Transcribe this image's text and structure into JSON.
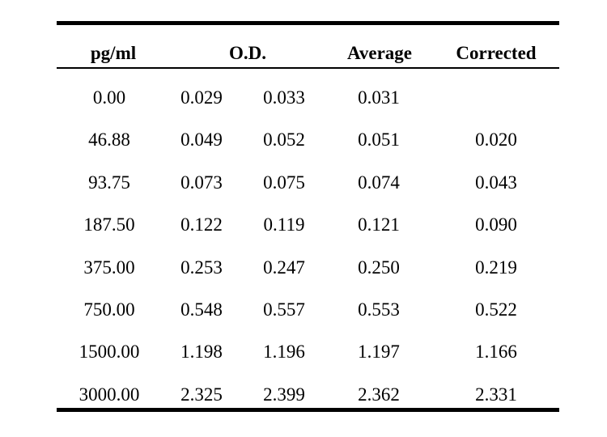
{
  "table": {
    "headers": {
      "conc": "pg/ml",
      "od": "O.D.",
      "average": "Average",
      "corrected": "Corrected"
    },
    "rows": [
      {
        "conc": "0.00",
        "od1": "0.029",
        "od2": "0.033",
        "average": "0.031",
        "corrected": ""
      },
      {
        "conc": "46.88",
        "od1": "0.049",
        "od2": "0.052",
        "average": "0.051",
        "corrected": "0.020"
      },
      {
        "conc": "93.75",
        "od1": "0.073",
        "od2": "0.075",
        "average": "0.074",
        "corrected": "0.043"
      },
      {
        "conc": "187.50",
        "od1": "0.122",
        "od2": "0.119",
        "average": "0.121",
        "corrected": "0.090"
      },
      {
        "conc": "375.00",
        "od1": "0.253",
        "od2": "0.247",
        "average": "0.250",
        "corrected": "0.219"
      },
      {
        "conc": "750.00",
        "od1": "0.548",
        "od2": "0.557",
        "average": "0.553",
        "corrected": "0.522"
      },
      {
        "conc": "1500.00",
        "od1": "1.198",
        "od2": "1.196",
        "average": "1.197",
        "corrected": "1.166"
      },
      {
        "conc": "3000.00",
        "od1": "2.325",
        "od2": "2.399",
        "average": "2.362",
        "corrected": "2.331"
      }
    ]
  }
}
